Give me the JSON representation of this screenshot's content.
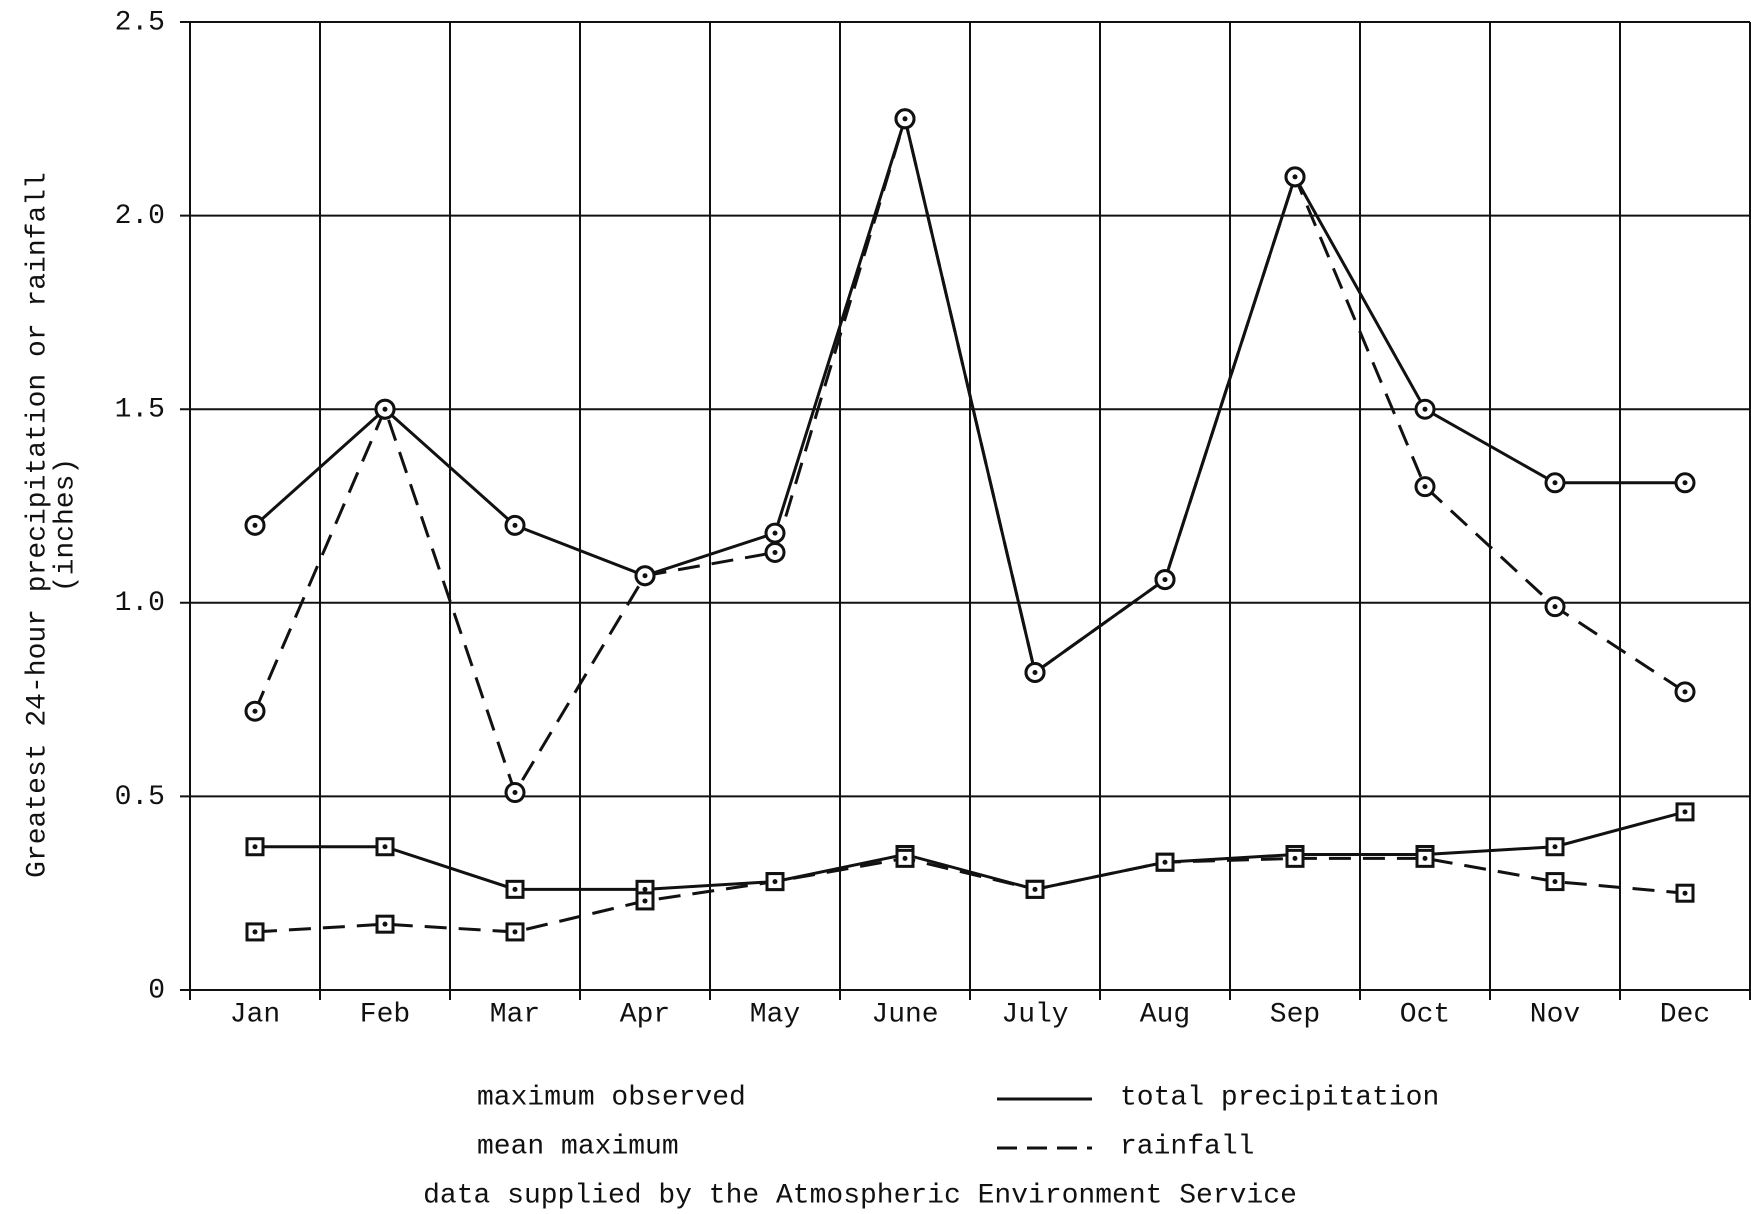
{
  "chart_data": {
    "type": "line",
    "ylabel": [
      "Greatest 24-hour precipitation or rainfall",
      "(inches)"
    ],
    "categories": [
      "Jan",
      "Feb",
      "Mar",
      "Apr",
      "May",
      "June",
      "July",
      "Aug",
      "Sep",
      "Oct",
      "Nov",
      "Dec"
    ],
    "series": [
      {
        "color": "#111111",
        "dashed": false,
        "marker": "circle",
        "values": [
          1.2,
          1.5,
          1.2,
          1.07,
          1.18,
          2.25,
          0.82,
          1.06,
          2.1,
          1.5,
          1.31,
          1.31
        ]
      },
      {
        "color": "#111111",
        "dashed": true,
        "marker": "circle",
        "values": [
          0.72,
          1.5,
          0.51,
          1.07,
          1.13,
          2.25,
          0.82,
          1.06,
          2.1,
          1.3,
          0.99,
          0.77
        ]
      },
      {
        "color": "#111111",
        "dashed": false,
        "marker": "square",
        "values": [
          0.37,
          0.37,
          0.26,
          0.26,
          0.28,
          0.35,
          0.26,
          0.33,
          0.35,
          0.35,
          0.37,
          0.46
        ]
      },
      {
        "color": "#111111",
        "dashed": true,
        "marker": "square",
        "values": [
          0.15,
          0.17,
          0.15,
          0.23,
          0.28,
          0.34,
          0.26,
          0.33,
          0.34,
          0.34,
          0.28,
          0.25
        ]
      }
    ],
    "ylim": [
      0,
      2.5
    ],
    "yticks": [
      0,
      0.5,
      {
        "value": 1,
        "label": "1.0"
      },
      1.5,
      {
        "value": 2,
        "label": "2.0"
      },
      2.5
    ],
    "grid": true,
    "legend": {
      "markers": [
        "maximum observed",
        "mean maximum"
      ],
      "lines": [
        "total precipitation",
        "rainfall"
      ]
    },
    "note": "data supplied by the Atmospheric Environment Service"
  }
}
